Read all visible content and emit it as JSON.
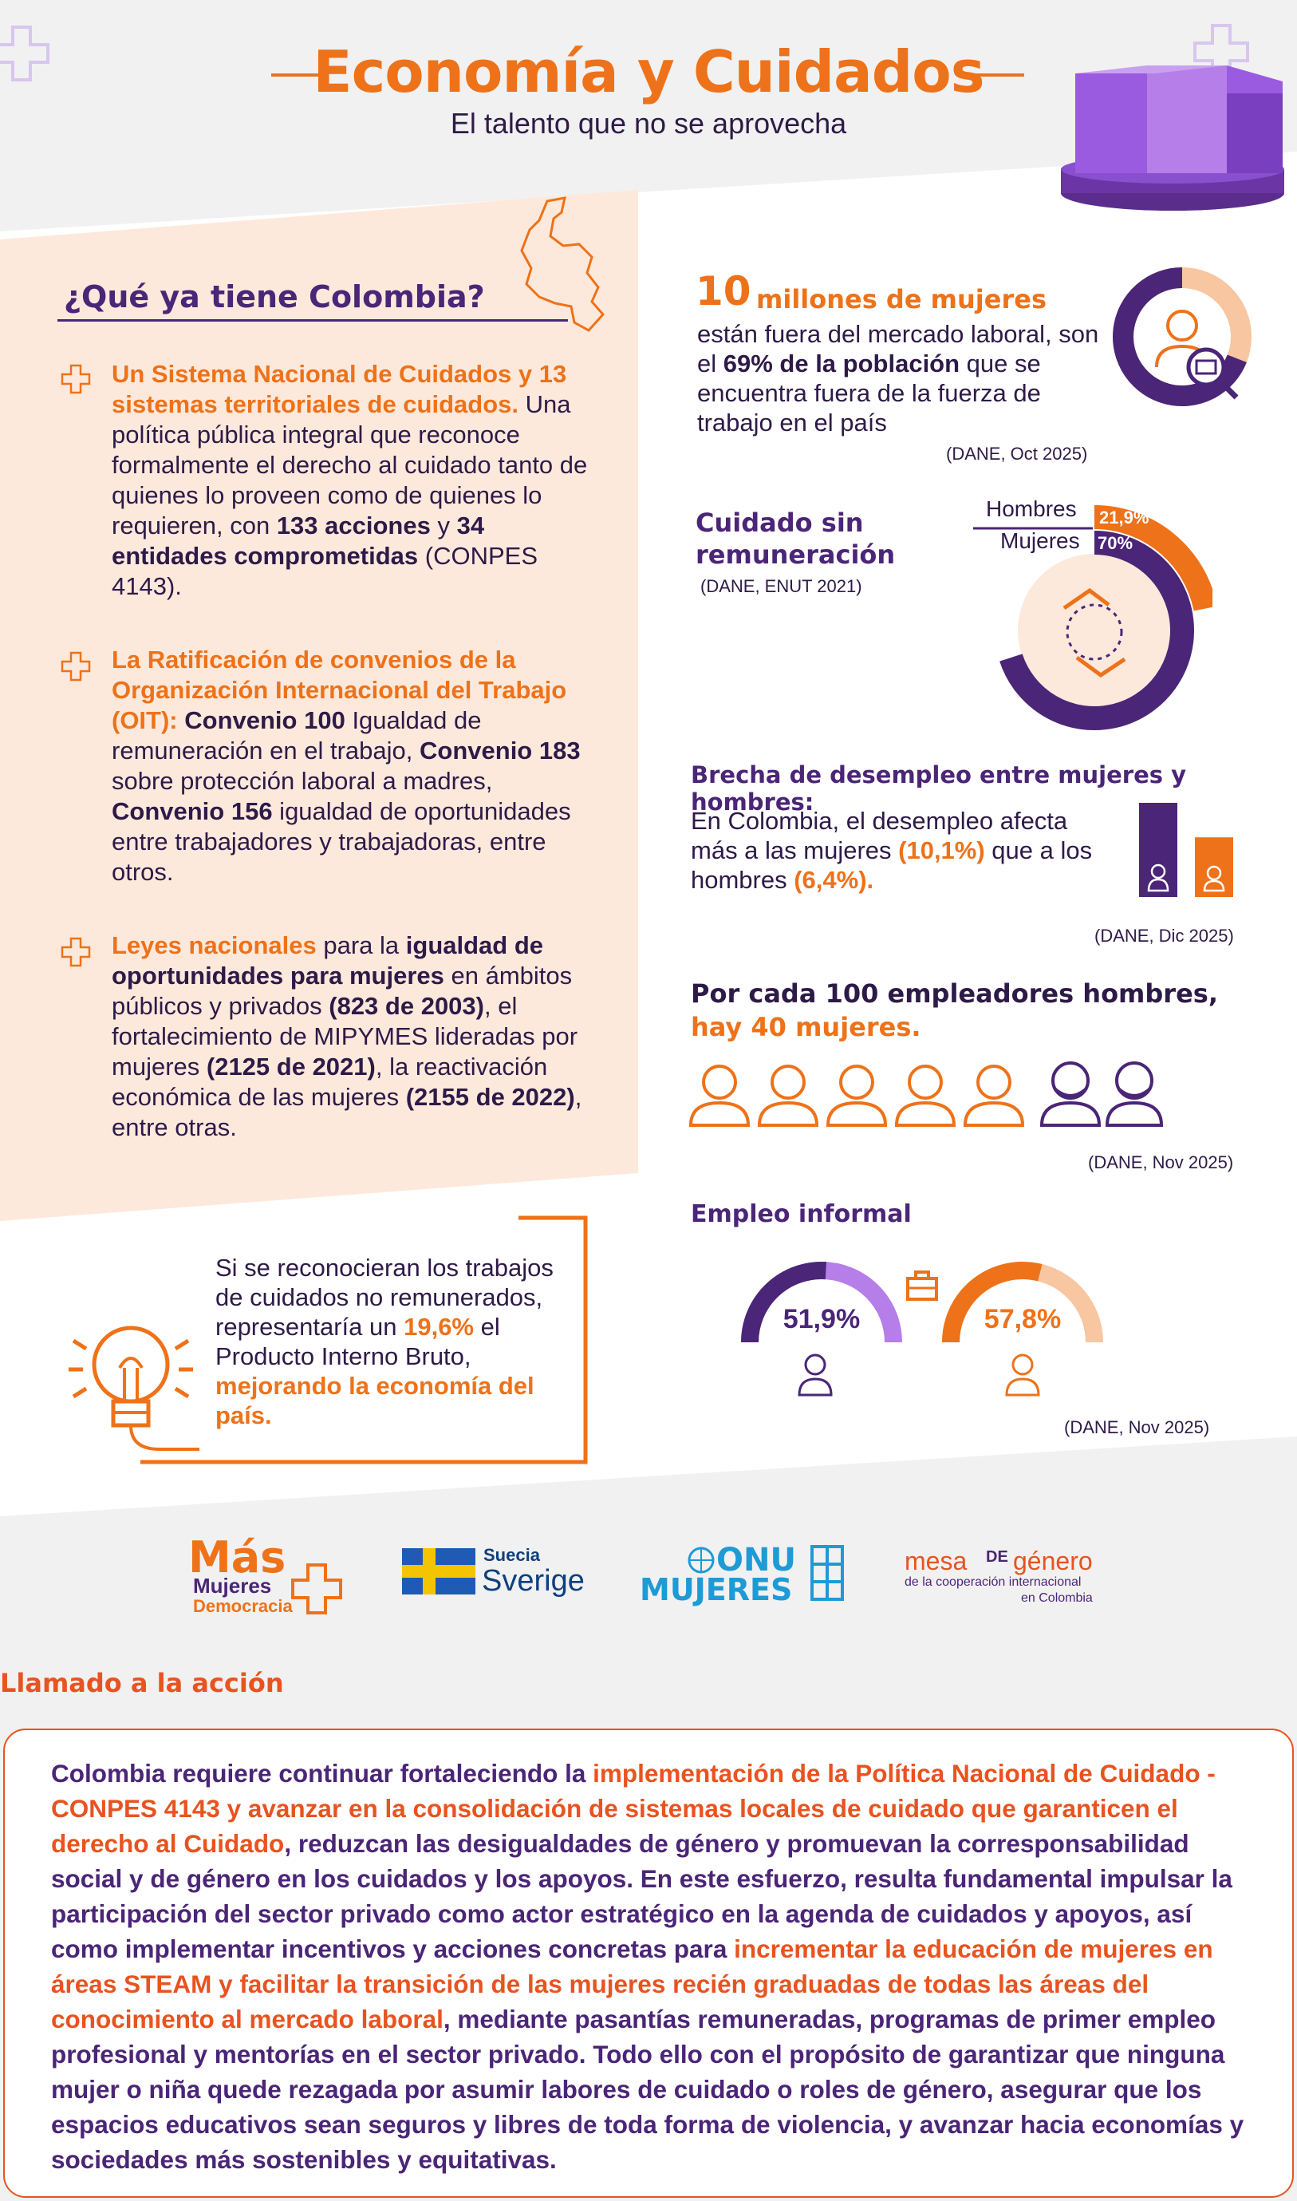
{
  "header": {
    "title": "Economía y Cuidados",
    "subtitle": "El talento que no se aprovecha"
  },
  "colombia": {
    "heading": "¿Qué ya tiene Colombia?",
    "item1": {
      "hl": "Un Sistema Nacional de Cuidados y 13 sistemas territoriales de cuidados.",
      "t1": " Una política pública integral que reconoce formalmente el derecho al cuidado tanto de quienes lo proveen como de quienes lo requieren, con ",
      "b1": "133 acciones",
      "t2": " y ",
      "b2": "34 entidades comprometidas",
      "t3": " (CONPES 4143)."
    },
    "item2": {
      "hl": "La Ratificación de convenios de la Organización Internacional del Trabajo (OIT):",
      "b1": " Convenio 100",
      "t1": " Igualdad de remuneración en el trabajo, ",
      "b2": "Convenio 183",
      "t2": " sobre protección laboral a madres, ",
      "b3": "Convenio 156",
      "t3": " igualdad de oportunidades entre trabajadores y trabajadoras, entre otros."
    },
    "item3": {
      "hl": "Leyes nacionales",
      "t1": " para la ",
      "b1": "igualdad de oportunidades para mujeres",
      "t2": " en ámbitos públicos y privados ",
      "b2": "(823 de 2003)",
      "t3": ", el fortalecimiento de MIPYMES lideradas por mujeres ",
      "b3": "(2125 de 2021)",
      "t4": ", la reactivación económica de las mujeres ",
      "b4": "(2155 de 2022)",
      "t5": ", entre otras."
    }
  },
  "stat_millions": {
    "number": "10",
    "label": "millones de mujeres",
    "t1": "están fuera del mercado laboral, son el ",
    "b1": "69% de la población",
    "t2": " que se encuentra fuera de la fuerza de trabajo en el país",
    "source": "(DANE, Oct 2025)",
    "share": 0.69
  },
  "care": {
    "heading_line1": "Cuidado sin",
    "heading_line2": "remuneración",
    "source": "(DANE, ENUT 2021)",
    "men_label": "Hombres",
    "men_value": "21,9%",
    "women_label": "Mujeres",
    "women_value": "70%",
    "men_share": 0.219,
    "women_share": 0.7
  },
  "unemployment": {
    "heading": "Brecha de desempleo entre mujeres y hombres:",
    "t1": "En Colombia, el desempleo afecta más a las mujeres ",
    "women": "(10,1%)",
    "t2": " que a los hombres ",
    "men": "(6,4%).",
    "source": "(DANE, Dic 2025)",
    "women_rate": 10.1,
    "men_rate": 6.4
  },
  "employers": {
    "line1": "Por cada 100 empleadores hombres,",
    "line2": "hay 40 mujeres.",
    "source": "(DANE, Nov 2025)"
  },
  "informal": {
    "heading": "Empleo informal",
    "women_value": "51,9%",
    "men_value": "57,8%",
    "women_share": 0.519,
    "men_share": 0.578,
    "source": "(DANE, Nov 2025)"
  },
  "callout": {
    "t1": "Si se reconocieran los trabajos de cuidados no remunerados, representaría un ",
    "hl1": "19,6%",
    "t2": " el Producto Interno Bruto, ",
    "hl2": "mejorando la economía del país."
  },
  "logos": {
    "mas_1": "Más",
    "mas_2": "Mujeres",
    "mas_3": "Democracia",
    "suecia": "Suecia",
    "sverige": "Sverige",
    "onu": "ONU",
    "mujeres": "MUJERES",
    "mesa_1": "mesa",
    "mesa_2": "DE",
    "mesa_3": "género",
    "mesa_4": "de la cooperación internacional",
    "mesa_5": "en Colombia"
  },
  "cta": {
    "heading": "Llamado a la acción",
    "t1": "Colombia requiere continuar fortaleciendo la ",
    "hl1": "implementación de la Política Nacional de Cuidado - CONPES 4143 y avanzar en la consolidación de sistemas locales de cuidado que garanticen el derecho al Cuidado",
    "t2": ", reduzcan las desigualdades de género y promuevan la corresponsabilidad social y de género en los cuidados y los apoyos. En este esfuerzo, resulta fundamental impulsar la participación del sector privado como actor estratégico en la agenda de cuidados y apoyos, así como implementar incentivos y acciones concretas para ",
    "hl2": "incrementar la educación de mujeres en áreas STEAM y facilitar la transición de las mujeres recién graduadas de todas las áreas del conocimiento al mercado laboral",
    "t3": ", mediante pasantías remuneradas, programas de primer empleo profesional y mentorías en el sector privado. Todo ello con el propósito de garantizar que ninguna mujer o niña quede rezagada por asumir labores de cuidado o roles de género, asegurar que los espacios educativos sean seguros y libres de toda forma de violencia, y avanzar hacia economías y sociedades más sostenibles y equitativas."
  },
  "colors": {
    "orange": "#ee7219",
    "purple": "#4b2577",
    "light_orange": "#f8c6a0",
    "light_purple": "#b57ee8",
    "peach": "#fde9dc",
    "red": "#e8531f"
  }
}
